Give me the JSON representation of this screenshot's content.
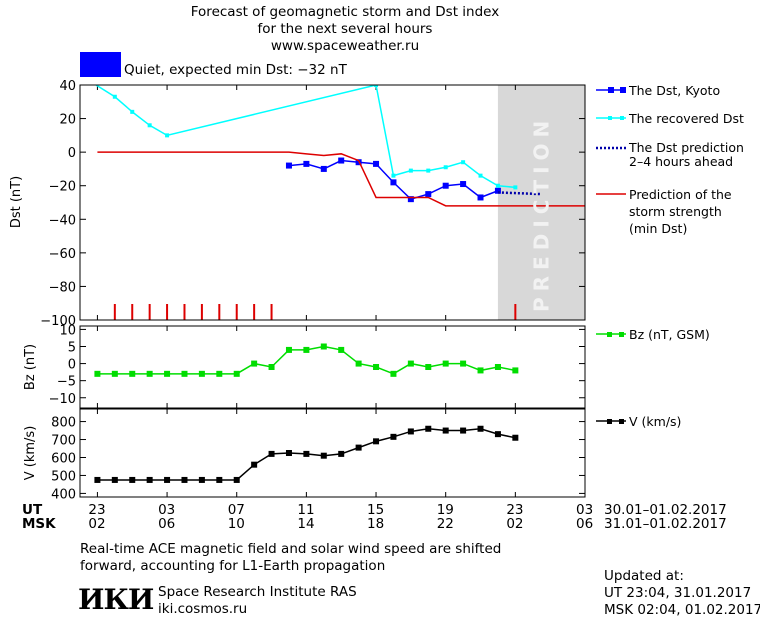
{
  "header": {
    "line1": "Forecast of geomagnetic storm and Dst index",
    "line2": "for the next several hours",
    "line3": "www.spaceweather.ru",
    "status_text": "Quiet, expected min Dst: −32 nT",
    "status_color": "#0000ff"
  },
  "prediction_label": "PREDICTION",
  "legend": {
    "dst_kyoto": "The Dst, Kyoto",
    "recovered": "The recovered Dst",
    "prediction_line1": "The Dst prediction",
    "prediction_line2": "2–4 hours ahead",
    "strength_line1": "Prediction of the",
    "strength_line2": "storm strength",
    "strength_line3": "(min Dst)",
    "bz": "Bz (nT, GSM)",
    "v": "V (km/s)"
  },
  "time_axis": {
    "ut_label": "UT",
    "msk_label": "MSK",
    "ut_ticks": [
      "23",
      "03",
      "07",
      "11",
      "15",
      "19",
      "23",
      "03"
    ],
    "msk_ticks": [
      "02",
      "06",
      "10",
      "14",
      "18",
      "22",
      "02",
      "06"
    ],
    "ut_range": "30.01–01.02.2017",
    "msk_range": "31.01–01.02.2017"
  },
  "footer": {
    "note_line1": "Real-time ACE magnetic field and solar wind speed are shifted",
    "note_line2": "forward, accounting for L1-Earth propagation",
    "logo_text": "ИКИ",
    "institute": "Space Research Institute RAS",
    "website": "iki.cosmos.ru",
    "updated_label": "Updated at:",
    "updated_ut": "UT   23:04, 31.01.2017",
    "updated_msk": "MSK 02:04, 01.02.2017"
  },
  "chart_data": [
    {
      "type": "line",
      "ylabel": "Dst (nT)",
      "ylim": [
        -100,
        40
      ],
      "yticks": [
        40,
        20,
        0,
        -20,
        -40,
        -60,
        -80,
        -100
      ],
      "x_hours": "hours since 23 UT 30.01.2017",
      "xlim": [
        -1,
        28
      ],
      "prediction_shade_x": [
        23,
        27
      ],
      "series": [
        {
          "name": "The Dst, Kyoto",
          "color": "#0000ff",
          "x": [
            11,
            12,
            13,
            14,
            15,
            16,
            17,
            18,
            19,
            20,
            21,
            22,
            23
          ],
          "y": [
            -8,
            -7,
            -10,
            -5,
            -6,
            -7,
            -18,
            -28,
            -25,
            -20,
            -19,
            -27,
            -23
          ]
        },
        {
          "name": "The recovered Dst",
          "color": "#00ffff",
          "x": [
            -1,
            1,
            2,
            3,
            4,
            16,
            17,
            18,
            19,
            20,
            21,
            22,
            23,
            24
          ],
          "y": [
            46,
            33,
            24,
            16,
            10,
            40,
            -14,
            -11,
            -11,
            -9,
            -6,
            -14,
            -20,
            -21
          ]
        },
        {
          "name": "The Dst prediction 2–4 hours ahead",
          "color": "#0000aa",
          "dotted": true,
          "x": [
            23,
            25.5
          ],
          "y": [
            -24,
            -25
          ]
        },
        {
          "name": "Prediction of the storm strength (min Dst)",
          "color": "#dd0000",
          "x": [
            0,
            11,
            12,
            13,
            14,
            15,
            16,
            19,
            20,
            28
          ],
          "y": [
            0,
            0,
            -1,
            -2,
            -1,
            -5,
            -27,
            -27,
            -32,
            -32
          ]
        }
      ],
      "event_marks_x": [
        1,
        2,
        3,
        4,
        5,
        6,
        7,
        8,
        9,
        10,
        24
      ]
    },
    {
      "type": "line",
      "ylabel": "Bz (nT)",
      "ylim": [
        -13,
        11
      ],
      "yticks": [
        10,
        5,
        0,
        -5,
        -10
      ],
      "series": [
        {
          "name": "Bz (nT, GSM)",
          "color": "#00dd00",
          "x": [
            0,
            1,
            2,
            3,
            4,
            5,
            6,
            7,
            8,
            9,
            10,
            11,
            12,
            13,
            14,
            15,
            16,
            17,
            18,
            19,
            20,
            21,
            22,
            23,
            24
          ],
          "y": [
            -3,
            -3,
            -3,
            -3,
            -3,
            -3,
            -3,
            -3,
            -3,
            0,
            -1,
            4,
            4,
            5,
            4,
            0,
            -1,
            -3,
            0,
            -1,
            0,
            0,
            -2,
            -1,
            -2
          ]
        }
      ]
    },
    {
      "type": "line",
      "ylabel": "V (km/s)",
      "ylim": [
        380,
        870
      ],
      "yticks": [
        800,
        700,
        600,
        500,
        400
      ],
      "series": [
        {
          "name": "V (km/s)",
          "color": "#000000",
          "x": [
            0,
            1,
            2,
            3,
            4,
            5,
            6,
            7,
            8,
            9,
            10,
            11,
            12,
            13,
            14,
            15,
            16,
            17,
            18,
            19,
            20,
            21,
            22,
            23,
            24
          ],
          "y": [
            475,
            475,
            475,
            475,
            475,
            475,
            475,
            475,
            475,
            560,
            620,
            625,
            620,
            610,
            620,
            655,
            690,
            715,
            745,
            760,
            750,
            750,
            760,
            730,
            710
          ]
        }
      ]
    }
  ]
}
